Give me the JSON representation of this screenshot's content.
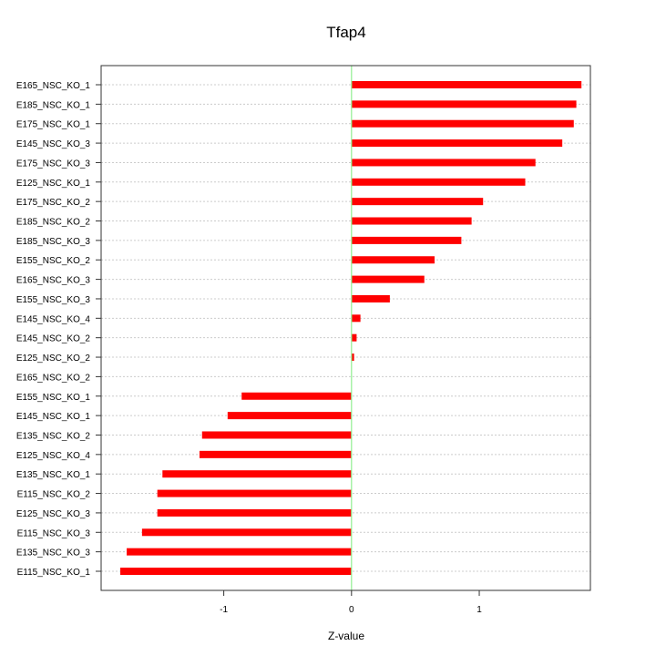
{
  "chart_data": {
    "type": "bar",
    "orientation": "horizontal",
    "title": "Tfap4",
    "xlabel": "Z-value",
    "ylabel": "",
    "xlim": [
      -1.96,
      1.87
    ],
    "xticks": [
      -1,
      0,
      1
    ],
    "xtick_labels": [
      "-1",
      "0",
      "1"
    ],
    "grid": "horizontal dotted",
    "bar_color": "#ff0000",
    "zero_line_color": "#90ee90",
    "categories": [
      "E165_NSC_KO_1",
      "E185_NSC_KO_1",
      "E175_NSC_KO_1",
      "E145_NSC_KO_3",
      "E175_NSC_KO_3",
      "E125_NSC_KO_1",
      "E175_NSC_KO_2",
      "E185_NSC_KO_2",
      "E185_NSC_KO_3",
      "E155_NSC_KO_2",
      "E165_NSC_KO_3",
      "E155_NSC_KO_3",
      "E145_NSC_KO_4",
      "E145_NSC_KO_2",
      "E125_NSC_KO_2",
      "E165_NSC_KO_2",
      "E155_NSC_KO_1",
      "E145_NSC_KO_1",
      "E135_NSC_KO_2",
      "E125_NSC_KO_4",
      "E135_NSC_KO_1",
      "E115_NSC_KO_2",
      "E125_NSC_KO_3",
      "E115_NSC_KO_3",
      "E135_NSC_KO_3",
      "E115_NSC_KO_1"
    ],
    "values": [
      1.8,
      1.76,
      1.74,
      1.65,
      1.44,
      1.36,
      1.03,
      0.94,
      0.86,
      0.65,
      0.57,
      0.3,
      0.07,
      0.04,
      0.02,
      0.0,
      -0.86,
      -0.97,
      -1.17,
      -1.19,
      -1.48,
      -1.52,
      -1.52,
      -1.64,
      -1.76,
      -1.81
    ]
  }
}
